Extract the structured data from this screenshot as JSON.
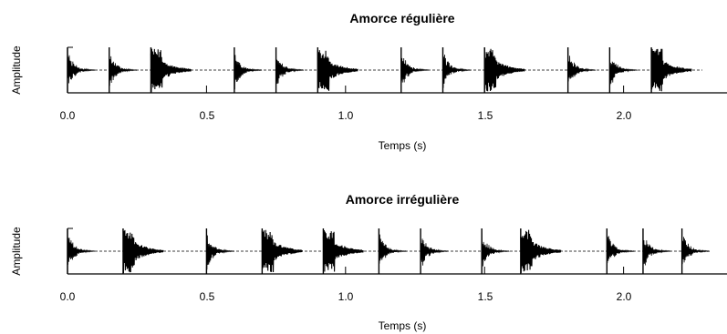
{
  "chart_data": [
    {
      "type": "line",
      "title": "Amorce régulière",
      "xlabel": "Temps (s)",
      "ylabel": "Amplitude",
      "xlim": [
        0.0,
        2.4
      ],
      "xticks": [
        "0.0",
        "0.5",
        "1.0",
        "1.5",
        "2.0"
      ],
      "baseline": "dashed",
      "series": [
        {
          "onsets": [
            0.0,
            0.15,
            0.3,
            0.6,
            0.75,
            0.9,
            1.2,
            1.35,
            1.5,
            1.8,
            1.95,
            2.1
          ],
          "accent": [
            false,
            false,
            true,
            false,
            false,
            true,
            false,
            false,
            true,
            false,
            false,
            true
          ]
        }
      ]
    },
    {
      "type": "line",
      "title": "Amorce irrégulière",
      "xlabel": "Temps (s)",
      "ylabel": "Amplitude",
      "xlim": [
        0.0,
        2.4
      ],
      "xticks": [
        "0.0",
        "0.5",
        "1.0",
        "1.5",
        "2.0"
      ],
      "baseline": "dashed",
      "series": [
        {
          "onsets": [
            0.0,
            0.2,
            0.5,
            0.7,
            0.92,
            1.12,
            1.27,
            1.49,
            1.63,
            1.94,
            2.07,
            2.21
          ],
          "accent": [
            false,
            true,
            false,
            true,
            true,
            false,
            false,
            false,
            true,
            false,
            false,
            false
          ]
        }
      ]
    }
  ]
}
